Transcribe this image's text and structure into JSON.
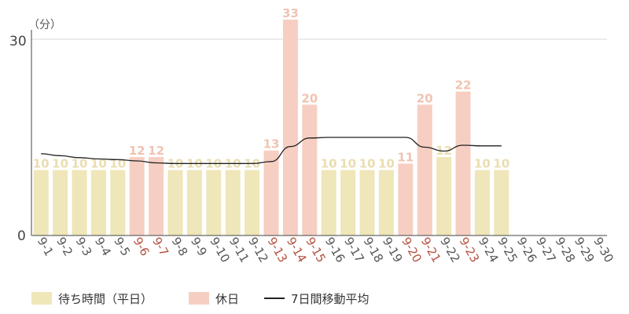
{
  "chart_data": {
    "type": "bar",
    "unit_label": "（分）",
    "ylim": [
      0,
      33
    ],
    "y_ticks": [
      0,
      30
    ],
    "y_tick_labels": [
      "0",
      "30"
    ],
    "grid": true,
    "categories": [
      "9-1",
      "9-2",
      "9-3",
      "9-4",
      "9-5",
      "9-6",
      "9-7",
      "9-8",
      "9-9",
      "9-10",
      "9-11",
      "9-12",
      "9-13",
      "9-14",
      "9-15",
      "9-16",
      "9-17",
      "9-18",
      "9-19",
      "9-20",
      "9-21",
      "9-22",
      "9-23",
      "9-24",
      "9-25",
      "9-26",
      "9-27",
      "9-28",
      "9-29",
      "9-30"
    ],
    "values": [
      10,
      10,
      10,
      10,
      10,
      12,
      12,
      10,
      10,
      10,
      10,
      10,
      13,
      33,
      20,
      10,
      10,
      10,
      10,
      11,
      20,
      12,
      22,
      10,
      10,
      null,
      null,
      null,
      null,
      null
    ],
    "day_type": [
      "weekday",
      "weekday",
      "weekday",
      "weekday",
      "weekday",
      "holiday",
      "holiday",
      "weekday",
      "weekday",
      "weekday",
      "weekday",
      "weekday",
      "holiday",
      "holiday",
      "holiday",
      "weekday",
      "weekday",
      "weekday",
      "weekday",
      "holiday",
      "holiday",
      "weekday",
      "holiday",
      "weekday",
      "weekday",
      "weekday",
      "weekday",
      "weekday",
      "weekday",
      "weekday"
    ],
    "moving_average": [
      12.5,
      12.2,
      11.9,
      11.7,
      11.6,
      11.4,
      11.1,
      11.0,
      11.0,
      11.0,
      11.0,
      11.0,
      11.3,
      13.6,
      14.9,
      15.0,
      15.0,
      15.0,
      15.0,
      15.0,
      13.5,
      12.9,
      13.8,
      13.7,
      13.7,
      null,
      null,
      null,
      null,
      null
    ],
    "series": [
      {
        "name": "待ち時間（平日）",
        "color": "#efe6b9"
      },
      {
        "name": "休日",
        "color": "#f6cfc2"
      },
      {
        "name": "7日間移動平均",
        "color": "#222222"
      }
    ],
    "colors": {
      "weekday_bar": "#efe6b9",
      "weekday_label": "#e9ddb0",
      "holiday_bar": "#f6cfc2",
      "holiday_label": "#f0c3b2",
      "holiday_tick": "#b5503e",
      "tick": "#555555",
      "axis": "#444444",
      "grid": "#d9d9d9",
      "ma_line": "#222222"
    }
  }
}
